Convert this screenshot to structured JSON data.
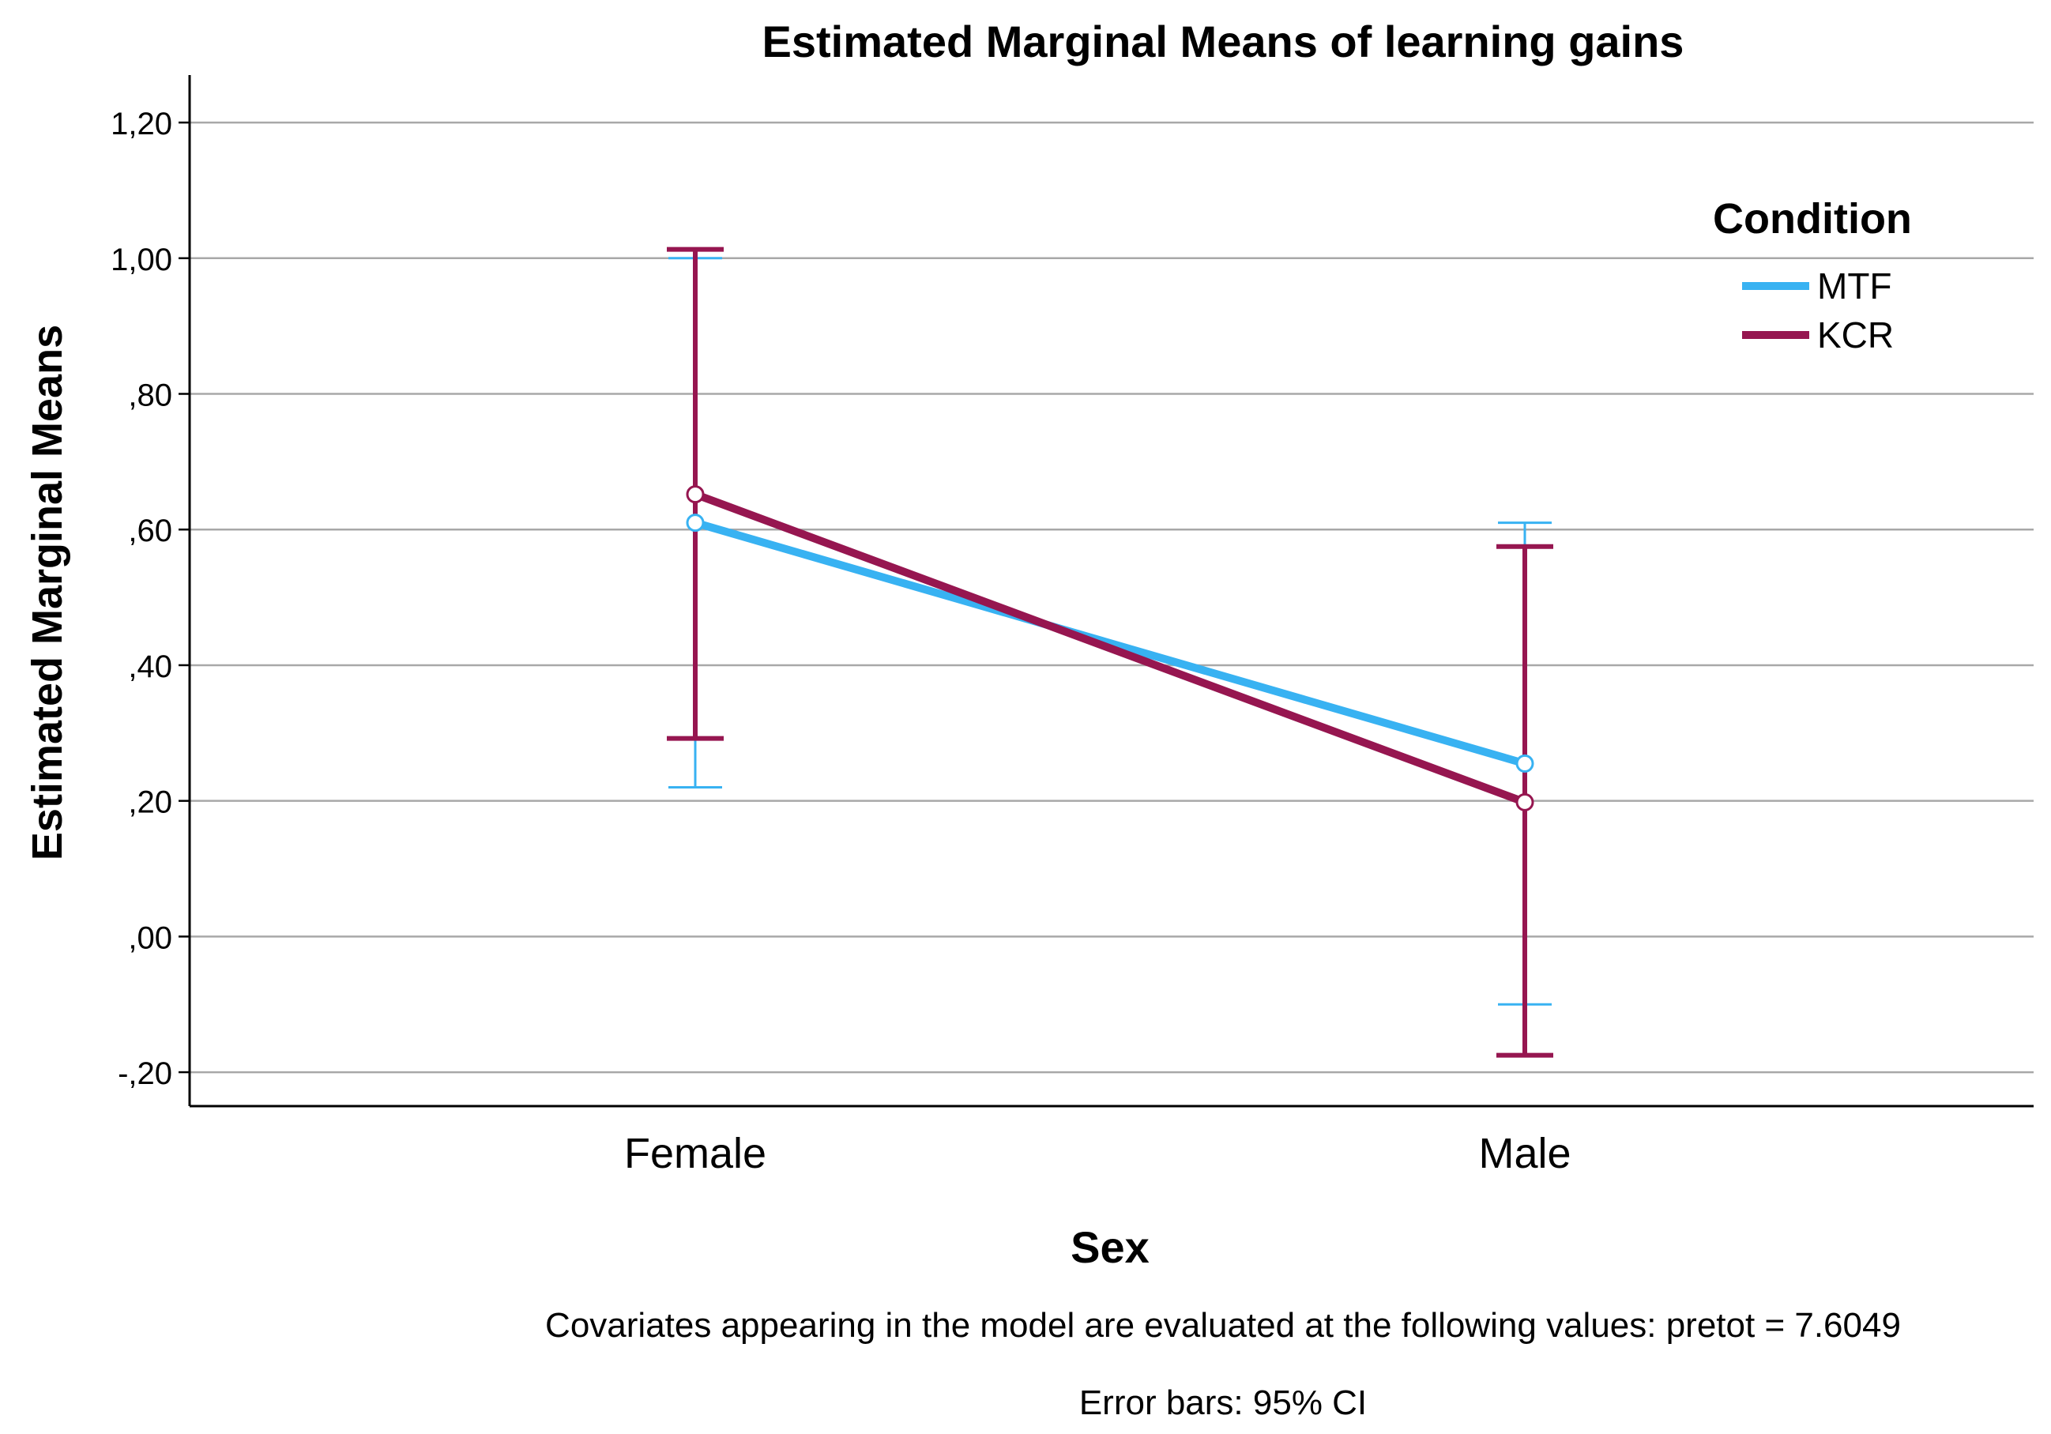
{
  "chart_data": {
    "type": "line",
    "title": "Estimated Marginal Means of learning gains",
    "xlabel": "Sex",
    "ylabel": "Estimated Marginal Means",
    "categories": [
      "Female",
      "Male"
    ],
    "ylim": [
      -0.25,
      1.27
    ],
    "yticks": [
      -0.2,
      0.0,
      0.2,
      0.4,
      0.6,
      0.8,
      1.0,
      1.2
    ],
    "ytick_labels": [
      "-,20",
      ",00",
      ",20",
      ",40",
      ",60",
      ",80",
      "1,00",
      "1,20"
    ],
    "grid": true,
    "legend": {
      "title": "Condition",
      "position": "top-right"
    },
    "series": [
      {
        "name": "MTF",
        "color": "#38b2f2",
        "values": [
          0.61,
          0.255
        ],
        "ci_lower": [
          0.22,
          -0.1
        ],
        "ci_upper": [
          1.0,
          0.61
        ]
      },
      {
        "name": "KCR",
        "color": "#961650",
        "values": [
          0.652,
          0.198
        ],
        "ci_lower": [
          0.292,
          -0.175
        ],
        "ci_upper": [
          1.013,
          0.575
        ]
      }
    ],
    "footnotes": [
      "Covariates appearing in the model are evaluated at the following values: pretot = 7.6049",
      "Error bars: 95% CI"
    ]
  }
}
